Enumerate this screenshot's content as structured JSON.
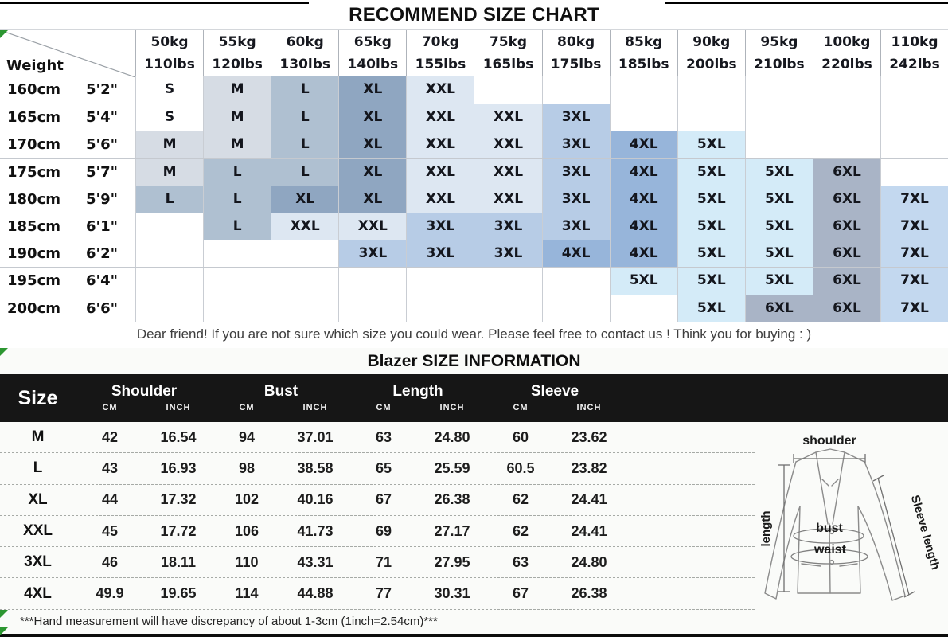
{
  "chart_data": [
    {
      "type": "table",
      "title": "RECOMMEND SIZE CHART",
      "corner_label": "Weight",
      "weight_columns_kg": [
        "50kg",
        "55kg",
        "60kg",
        "65kg",
        "70kg",
        "75kg",
        "80kg",
        "85kg",
        "90kg",
        "95kg",
        "100kg",
        "110kg"
      ],
      "weight_columns_lbs": [
        "110lbs",
        "120lbs",
        "130lbs",
        "140lbs",
        "155lbs",
        "165lbs",
        "175lbs",
        "185lbs",
        "200lbs",
        "210lbs",
        "220lbs",
        "242lbs"
      ],
      "height_rows": [
        {
          "cm": "160cm",
          "ft": "5'2\"",
          "sizes": [
            "S",
            "M",
            "L",
            "XL",
            "XXL",
            "",
            "",
            "",
            "",
            "",
            "",
            ""
          ]
        },
        {
          "cm": "165cm",
          "ft": "5'4\"",
          "sizes": [
            "S",
            "M",
            "L",
            "XL",
            "XXL",
            "XXL",
            "3XL",
            "",
            "",
            "",
            "",
            ""
          ]
        },
        {
          "cm": "170cm",
          "ft": "5'6\"",
          "sizes": [
            "M",
            "M",
            "L",
            "XL",
            "XXL",
            "XXL",
            "3XL",
            "4XL",
            "5XL",
            "",
            "",
            ""
          ]
        },
        {
          "cm": "175cm",
          "ft": "5'7\"",
          "sizes": [
            "M",
            "L",
            "L",
            "XL",
            "XXL",
            "XXL",
            "3XL",
            "4XL",
            "5XL",
            "5XL",
            "6XL",
            ""
          ]
        },
        {
          "cm": "180cm",
          "ft": "5'9\"",
          "sizes": [
            "L",
            "L",
            "XL",
            "XL",
            "XXL",
            "XXL",
            "3XL",
            "4XL",
            "5XL",
            "5XL",
            "6XL",
            "7XL"
          ]
        },
        {
          "cm": "185cm",
          "ft": "6'1\"",
          "sizes": [
            "",
            "L",
            "XXL",
            "XXL",
            "3XL",
            "3XL",
            "3XL",
            "4XL",
            "5XL",
            "5XL",
            "6XL",
            "7XL"
          ]
        },
        {
          "cm": "190cm",
          "ft": "6'2\"",
          "sizes": [
            "",
            "",
            "",
            "3XL",
            "3XL",
            "3XL",
            "4XL",
            "4XL",
            "5XL",
            "5XL",
            "6XL",
            "7XL"
          ]
        },
        {
          "cm": "195cm",
          "ft": "6'4\"",
          "sizes": [
            "",
            "",
            "",
            "",
            "",
            "",
            "",
            "5XL",
            "5XL",
            "5XL",
            "6XL",
            "7XL"
          ]
        },
        {
          "cm": "200cm",
          "ft": "6'6\"",
          "sizes": [
            "",
            "",
            "",
            "",
            "",
            "",
            "",
            "",
            "5XL",
            "6XL",
            "6XL",
            "7XL"
          ]
        }
      ],
      "size_cell_colors": {
        "S": "#ffffff",
        "M": "#d6dce4",
        "L": "#afc0d1",
        "XL": "#8fa6c1",
        "XXL": "#dde7f2",
        "3XL": "#b7cce6",
        "4XL": "#97b5da",
        "5XL": "#d4ebf8",
        "6XL": "#a9b4c6",
        "7XL": "#c3d8ef"
      },
      "note": "Dear friend! If you are not sure which size you could wear. Please feel free to contact us ! Think you for buying : )"
    },
    {
      "type": "table",
      "title": "Blazer SIZE INFORMATION",
      "size_header": "Size",
      "measure_groups": [
        "Shoulder",
        "Bust",
        "Length",
        "Sleeve"
      ],
      "unit_headers": [
        "CM",
        "INCH"
      ],
      "rows": [
        {
          "size": "M",
          "values": [
            "42",
            "16.54",
            "94",
            "37.01",
            "63",
            "24.80",
            "60",
            "23.62"
          ]
        },
        {
          "size": "L",
          "values": [
            "43",
            "16.93",
            "98",
            "38.58",
            "65",
            "25.59",
            "60.5",
            "23.82"
          ]
        },
        {
          "size": "XL",
          "values": [
            "44",
            "17.32",
            "102",
            "40.16",
            "67",
            "26.38",
            "62",
            "24.41"
          ]
        },
        {
          "size": "XXL",
          "values": [
            "45",
            "17.72",
            "106",
            "41.73",
            "69",
            "27.17",
            "62",
            "24.41"
          ]
        },
        {
          "size": "3XL",
          "values": [
            "46",
            "18.11",
            "110",
            "43.31",
            "71",
            "27.95",
            "63",
            "24.80"
          ]
        },
        {
          "size": "4XL",
          "values": [
            "49.9",
            "19.65",
            "114",
            "44.88",
            "77",
            "30.31",
            "67",
            "26.38"
          ]
        }
      ],
      "diagram_labels": {
        "shoulder": "shoulder",
        "length": "length",
        "sleeve": "Sleeve length",
        "bust": "bust",
        "waist": "waist"
      },
      "footnote": "***Hand measurement will have discrepancy of about 1-3cm (1inch=2.54cm)***"
    }
  ]
}
